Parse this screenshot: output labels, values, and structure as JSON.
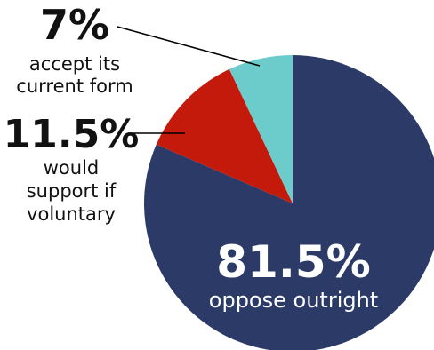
{
  "chart_data": {
    "type": "pie",
    "start_angle_deg": 0,
    "direction": "clockwise",
    "slices": [
      {
        "value": 81.5,
        "percent_label": "81.5%",
        "description": "oppose outright",
        "color": "#2b3a66"
      },
      {
        "value": 11.5,
        "percent_label": "11.5%",
        "description_lines": [
          "would",
          "support if",
          "voluntary"
        ],
        "color": "#c41a0b"
      },
      {
        "value": 7,
        "percent_label": "7%",
        "description_lines": [
          "accept its",
          "current form"
        ],
        "color": "#6ccccb"
      }
    ],
    "legend": "none",
    "labels": "inline with leader lines for small slices"
  }
}
